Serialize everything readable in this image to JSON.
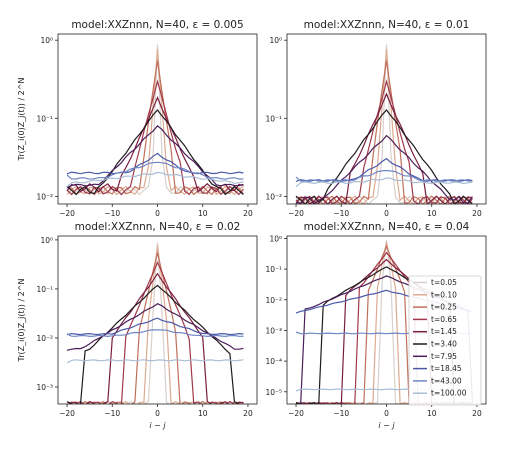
{
  "figure": {
    "ylabel": "Tr(Z_i(0)Z_j(t)) / 2^N",
    "xlabel": "i − j"
  },
  "chart_data": [
    {
      "type": "line",
      "title": "model:XXZnnn, N=40, ε = 0.005",
      "xlim": [
        -22,
        22
      ],
      "ylog": true,
      "ylim": [
        0.008,
        1.2
      ],
      "xticks": [
        -20,
        -10,
        0,
        10,
        20
      ],
      "yticks": [
        {
          "v": 1,
          "label": "10⁰"
        },
        {
          "v": 0.1,
          "label": "10⁻¹"
        },
        {
          "v": 0.01,
          "label": "10⁻²"
        }
      ],
      "ylabel": "Tr(Z_i(0)Z_j(t)) / 2^N",
      "xlabel": "",
      "series": [
        {
          "name": "t=0.05",
          "color": "#d9d0cc",
          "center": 0.9,
          "width": 0.3,
          "floor": 0.012,
          "extent": 1
        },
        {
          "name": "t=0.10",
          "color": "#dcaa90",
          "center": 0.75,
          "width": 0.6,
          "floor": 0.012,
          "extent": 2
        },
        {
          "name": "t=0.25",
          "color": "#c0705a",
          "center": 0.55,
          "width": 1.1,
          "floor": 0.012,
          "extent": 3
        },
        {
          "name": "t=0.65",
          "color": "#a0394a",
          "center": 0.3,
          "width": 2.0,
          "floor": 0.012,
          "extent": 5
        },
        {
          "name": "t=1.45",
          "color": "#7a1e40",
          "center": 0.18,
          "width": 3.4,
          "floor": 0.013,
          "extent": 8
        },
        {
          "name": "t=3.40",
          "color": "#1e1a1e",
          "center": 0.13,
          "width": 5.5,
          "floor": 0.012,
          "extent": 13
        },
        {
          "name": "t=7.95",
          "color": "#4a1e5a",
          "center": 0.08,
          "width": 7.5,
          "floor": 0.014,
          "extent": 20
        },
        {
          "name": "t=18.45",
          "color": "#4a5aa8",
          "center": 0.035,
          "width": 12,
          "floor": 0.02,
          "extent": 20
        },
        {
          "name": "t=43.00",
          "color": "#6f86c4",
          "center": 0.028,
          "width": 25,
          "floor": 0.017,
          "extent": 20
        },
        {
          "name": "t=100.00",
          "color": "#a9bdd5",
          "center": 0.02,
          "width": 60,
          "floor": 0.015,
          "extent": 20
        }
      ]
    },
    {
      "type": "line",
      "title": "model:XXZnnn, N=40, ε = 0.01",
      "xlim": [
        -22,
        22
      ],
      "ylog": true,
      "ylim": [
        0.008,
        1.2
      ],
      "xticks": [
        -20,
        -10,
        0,
        10,
        20
      ],
      "yticks": [
        {
          "v": 1,
          "label": "10⁰"
        },
        {
          "v": 0.1,
          "label": "10⁻¹"
        },
        {
          "v": 0.01,
          "label": "10⁻²"
        }
      ],
      "ylabel": "",
      "xlabel": "",
      "series": [
        {
          "name": "t=0.05",
          "color": "#d9d0cc",
          "center": 0.9,
          "width": 0.3,
          "floor": 0.009,
          "extent": 1
        },
        {
          "name": "t=0.10",
          "color": "#dcaa90",
          "center": 0.75,
          "width": 0.6,
          "floor": 0.009,
          "extent": 2
        },
        {
          "name": "t=0.25",
          "color": "#c0705a",
          "center": 0.55,
          "width": 1.1,
          "floor": 0.009,
          "extent": 3
        },
        {
          "name": "t=0.65",
          "color": "#a0394a",
          "center": 0.3,
          "width": 2.0,
          "floor": 0.009,
          "extent": 5
        },
        {
          "name": "t=1.45",
          "color": "#7a1e40",
          "center": 0.2,
          "width": 3.4,
          "floor": 0.009,
          "extent": 8
        },
        {
          "name": "t=3.40",
          "color": "#1e1a1e",
          "center": 0.13,
          "width": 5.5,
          "floor": 0.009,
          "extent": 14
        },
        {
          "name": "t=7.95",
          "color": "#4a1e5a",
          "center": 0.06,
          "width": 7.5,
          "floor": 0.009,
          "extent": 16
        },
        {
          "name": "t=18.45",
          "color": "#4a5aa8",
          "center": 0.03,
          "width": 12,
          "floor": 0.016,
          "extent": 20
        },
        {
          "name": "t=43.00",
          "color": "#6f86c4",
          "center": 0.022,
          "width": 25,
          "floor": 0.016,
          "extent": 20
        },
        {
          "name": "t=100.00",
          "color": "#a9bdd5",
          "center": 0.017,
          "width": 60,
          "floor": 0.015,
          "extent": 20
        }
      ]
    },
    {
      "type": "line",
      "title": "model:XXZnnn, N=40, ε = 0.02",
      "xlim": [
        -22,
        22
      ],
      "ylog": true,
      "ylim": [
        0.00045,
        1.2
      ],
      "xticks": [
        -20,
        -10,
        0,
        10,
        20
      ],
      "yticks": [
        {
          "v": 1,
          "label": "10⁰"
        },
        {
          "v": 0.1,
          "label": "10⁻¹"
        },
        {
          "v": 0.01,
          "label": "10⁻²"
        },
        {
          "v": 0.001,
          "label": "10⁻³"
        }
      ],
      "ylabel": "Tr(Z_i(0)Z_j(t)) / 2^N",
      "xlabel": "i − j",
      "series": [
        {
          "name": "t=0.05",
          "color": "#d9d0cc",
          "center": 0.9,
          "width": 0.3,
          "floor": 0.00045,
          "extent": 1
        },
        {
          "name": "t=0.10",
          "color": "#dcaa90",
          "center": 0.75,
          "width": 0.6,
          "floor": 0.00045,
          "extent": 2
        },
        {
          "name": "t=0.25",
          "color": "#c0705a",
          "center": 0.55,
          "width": 1.1,
          "floor": 0.00045,
          "extent": 4
        },
        {
          "name": "t=0.65",
          "color": "#a0394a",
          "center": 0.35,
          "width": 2.0,
          "floor": 0.00045,
          "extent": 7
        },
        {
          "name": "t=1.45",
          "color": "#7a1e40",
          "center": 0.2,
          "width": 3.4,
          "floor": 0.00045,
          "extent": 10
        },
        {
          "name": "t=3.40",
          "color": "#1e1a1e",
          "center": 0.12,
          "width": 5.0,
          "floor": 0.00045,
          "extent": 16
        },
        {
          "name": "t=7.95",
          "color": "#4a1e5a",
          "center": 0.05,
          "width": 8,
          "floor": 0.006,
          "extent": 20
        },
        {
          "name": "t=18.45",
          "color": "#4a5aa8",
          "center": 0.025,
          "width": 14,
          "floor": 0.012,
          "extent": 20
        },
        {
          "name": "t=43.00",
          "color": "#6f86c4",
          "center": 0.015,
          "width": 30,
          "floor": 0.011,
          "extent": 20
        },
        {
          "name": "t=100.00",
          "color": "#a9bdd5",
          "center": 0.0035,
          "width": 999,
          "floor": 0.0035,
          "extent": 20
        }
      ]
    },
    {
      "type": "line",
      "title": "model:XXZnnn, N=40, ε = 0.04",
      "xlim": [
        -22,
        22
      ],
      "ylog": true,
      "ylim": [
        4e-06,
        1.2
      ],
      "xticks": [
        -20,
        -10,
        0,
        10,
        20
      ],
      "yticks": [
        {
          "v": 1,
          "label": "10⁰"
        },
        {
          "v": 0.1,
          "label": "10⁻¹"
        },
        {
          "v": 0.01,
          "label": "10⁻²"
        },
        {
          "v": 0.001,
          "label": "10⁻³"
        },
        {
          "v": 0.0001,
          "label": "10⁻⁴"
        },
        {
          "v": 1e-05,
          "label": "10⁻⁵"
        }
      ],
      "ylabel": "",
      "xlabel": "i − j",
      "legend": {
        "position": "right",
        "entries": [
          "t=0.05",
          "t=0.10",
          "t=0.25",
          "t=0.65",
          "t=1.45",
          "t=3.40",
          "t=7.95",
          "t=18.45",
          "t=43.00",
          "t=100.00"
        ]
      },
      "series": [
        {
          "name": "t=0.05",
          "color": "#d9d0cc",
          "center": 0.9,
          "width": 0.3,
          "floor": 4e-06,
          "extent": 1
        },
        {
          "name": "t=0.10",
          "color": "#dcaa90",
          "center": 0.75,
          "width": 0.6,
          "floor": 4e-06,
          "extent": 2
        },
        {
          "name": "t=0.25",
          "color": "#c0705a",
          "center": 0.55,
          "width": 1.2,
          "floor": 4e-06,
          "extent": 4
        },
        {
          "name": "t=0.65",
          "color": "#a0394a",
          "center": 0.35,
          "width": 2.2,
          "floor": 4e-06,
          "extent": 6
        },
        {
          "name": "t=1.45",
          "color": "#7a1e40",
          "center": 0.2,
          "width": 3.5,
          "floor": 4e-06,
          "extent": 9
        },
        {
          "name": "t=3.40",
          "color": "#1e1a1e",
          "center": 0.12,
          "width": 5.0,
          "floor": 4e-06,
          "extent": 14
        },
        {
          "name": "t=7.95",
          "color": "#4a1e5a",
          "center": 0.06,
          "width": 7,
          "floor": 4e-06,
          "extent": 18
        },
        {
          "name": "t=18.45",
          "color": "#4a5aa8",
          "center": 0.02,
          "width": 12,
          "floor": 0.0006,
          "extent": 20
        },
        {
          "name": "t=43.00",
          "color": "#6f86c4",
          "center": 0.0008,
          "width": 999,
          "floor": 0.0008,
          "extent": 20
        },
        {
          "name": "t=100.00",
          "color": "#a9bdd5",
          "center": 1.2e-05,
          "width": 999,
          "floor": 1.2e-05,
          "extent": 20
        }
      ]
    }
  ]
}
